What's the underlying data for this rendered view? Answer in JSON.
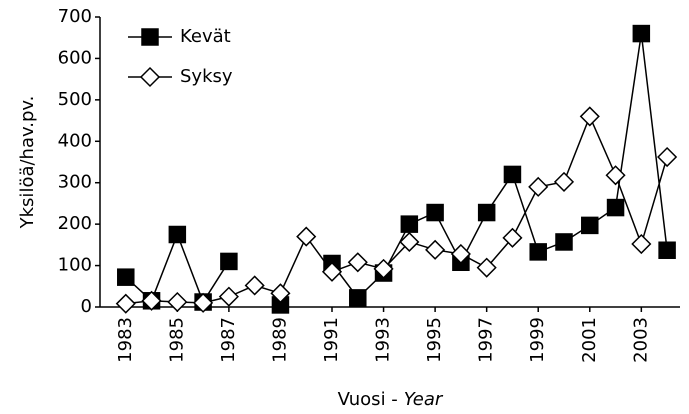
{
  "chart_data": {
    "type": "line",
    "ylabel": "Yksilöä/hav.pv.",
    "xlabel": [
      "Vuosi -",
      "Year"
    ],
    "x": [
      1983,
      1984,
      1985,
      1986,
      1987,
      1988,
      1989,
      1990,
      1991,
      1992,
      1993,
      1994,
      1995,
      1996,
      1997,
      1998,
      1999,
      2000,
      2001,
      2002,
      2003,
      2004
    ],
    "series": [
      {
        "name": "Kevät",
        "color": "#000000",
        "fill": "#000000",
        "marker": "square",
        "values": [
          72,
          15,
          175,
          12,
          110,
          null,
          5,
          null,
          105,
          22,
          82,
          200,
          228,
          108,
          228,
          320,
          133,
          157,
          197,
          240,
          660,
          137
        ]
      },
      {
        "name": "Syksy",
        "color": "#000000",
        "fill": "#ffffff",
        "marker": "diamond",
        "values": [
          8,
          15,
          12,
          10,
          25,
          52,
          33,
          170,
          85,
          108,
          92,
          157,
          138,
          128,
          95,
          167,
          290,
          302,
          460,
          318,
          152,
          362
        ]
      }
    ],
    "xlim": [
      1982,
      2004.5
    ],
    "xticks": [
      1983,
      1985,
      1987,
      1989,
      1991,
      1993,
      1995,
      1997,
      1999,
      2001,
      2003
    ],
    "ylim": [
      0,
      700
    ],
    "yticks": [
      0,
      100,
      200,
      300,
      400,
      500,
      600,
      700
    ],
    "legend": "top-left"
  }
}
